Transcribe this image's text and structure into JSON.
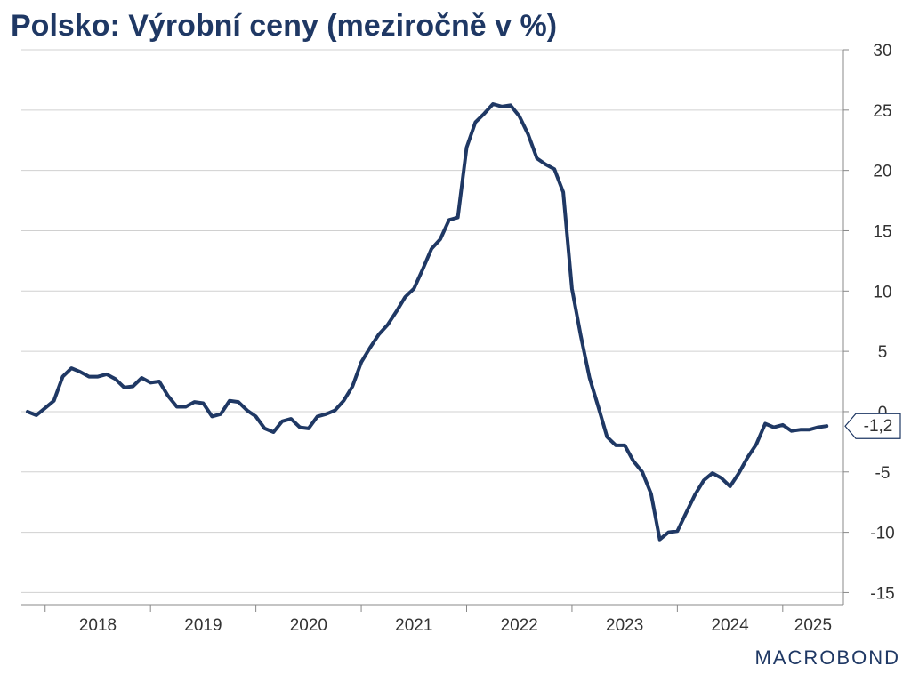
{
  "title": "Polsko: Výrobní ceny (meziročně v %)",
  "brand": "MACROBOND",
  "colors": {
    "line": "#1f3864",
    "grid": "#d0d0d0",
    "axis": "#888888",
    "title": "#1f3864"
  },
  "chart_data": {
    "type": "line",
    "title": "Polsko: Výrobní ceny (meziročně v %)",
    "x_start": "2017-11",
    "x_frequency": "monthly",
    "x_ticks": [
      "2018",
      "2019",
      "2020",
      "2021",
      "2022",
      "2023",
      "2024",
      "2025"
    ],
    "y_ticks": [
      30,
      25,
      20,
      15,
      10,
      5,
      0,
      -5,
      -10,
      -15
    ],
    "ylim": [
      -16,
      30
    ],
    "y_axis_position": "right",
    "grid": true,
    "last_value_label": "-1,2",
    "series": [
      {
        "values": [
          0.0,
          -0.3,
          0.3,
          0.9,
          2.9,
          3.6,
          3.3,
          2.9,
          2.9,
          3.1,
          2.7,
          2.0,
          2.1,
          2.8,
          2.4,
          2.5,
          1.3,
          0.4,
          0.4,
          0.8,
          0.7,
          -0.4,
          -0.2,
          0.9,
          0.8,
          0.1,
          -0.4,
          -1.4,
          -1.7,
          -0.8,
          -0.6,
          -1.3,
          -1.4,
          -0.4,
          -0.2,
          0.1,
          0.9,
          2.1,
          4.1,
          5.3,
          6.4,
          7.2,
          8.3,
          9.5,
          10.2,
          11.8,
          13.5,
          14.3,
          15.9,
          16.1,
          21.9,
          24.0,
          24.7,
          25.5,
          25.3,
          25.4,
          24.5,
          23.0,
          21.0,
          20.5,
          20.1,
          18.2,
          10.2,
          6.3,
          2.8,
          0.4,
          -2.1,
          -2.8,
          -2.8,
          -4.1,
          -5.0,
          -6.8,
          -10.6,
          -10.0,
          -9.9,
          -8.4,
          -6.9,
          -5.7,
          -5.1,
          -5.5,
          -6.2,
          -5.1,
          -3.8,
          -2.7,
          -1.0,
          -1.3,
          -1.1,
          -1.6,
          -1.5,
          -1.5,
          -1.3,
          -1.2
        ]
      }
    ]
  }
}
